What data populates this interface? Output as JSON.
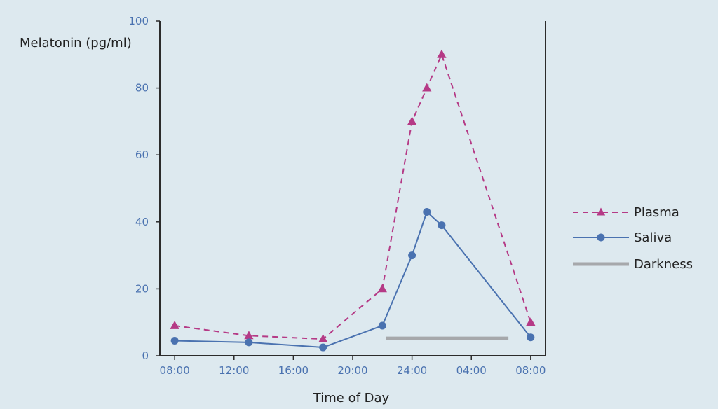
{
  "chart_data": {
    "type": "line",
    "xlabel": "Time of Day",
    "ylabel": "Melatonin (pg/ml)",
    "ylim": [
      0,
      100
    ],
    "yticks": [
      "0",
      "20",
      "40",
      "60",
      "80",
      "100"
    ],
    "xticks": [
      "08:00",
      "12:00",
      "16:00",
      "20:00",
      "24:00",
      "04:00",
      "08:00"
    ],
    "x_unit": "hours after 08:00",
    "xlim": [
      -1,
      25
    ],
    "grid": false,
    "legend_position": "right",
    "series": [
      {
        "name": "Plasma",
        "style": "dashed",
        "marker": "triangle",
        "color": "#b53a86",
        "x": [
          0,
          5,
          10,
          14,
          16,
          17,
          18,
          24
        ],
        "y": [
          9,
          6,
          5,
          20,
          70,
          80,
          90,
          10
        ]
      },
      {
        "name": "Saliva",
        "style": "solid",
        "marker": "circle",
        "color": "#4a72b0",
        "x": [
          0,
          5,
          10,
          14,
          16,
          17,
          18,
          24
        ],
        "y": [
          4.5,
          4,
          2.5,
          9,
          30,
          43,
          39,
          5.5
        ]
      }
    ],
    "darkness": {
      "name": "Darkness",
      "color": "#a6a8ab",
      "x_start": 14.25,
      "x_end": 22.5,
      "y": 5
    }
  },
  "colors": {
    "background": "#dde9ef",
    "axis": "#2b2b2b",
    "tick_text": "#4a72b0"
  }
}
